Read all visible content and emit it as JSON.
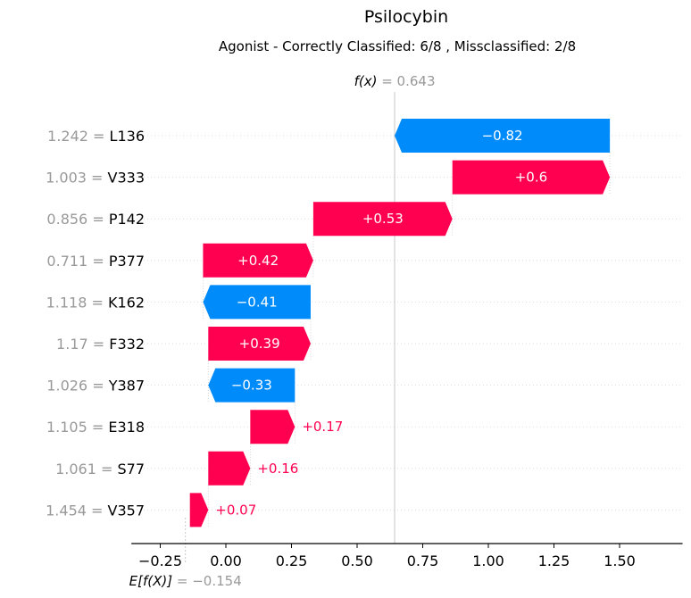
{
  "chart_data": {
    "type": "waterfall",
    "title": "Psilocybin",
    "subtitle": "Agonist - Correctly Classified: 6/8 , Missclassified: 2/8",
    "fx": {
      "label": "f(x)",
      "value": "0.643",
      "x": 0.643
    },
    "ex": {
      "label": "E[f(X)]",
      "value": "−0.154",
      "x": -0.154
    },
    "xlim": [
      -0.36,
      1.74
    ],
    "xticks": [
      -0.25,
      0.0,
      0.25,
      0.5,
      0.75,
      1.0,
      1.25,
      1.5
    ],
    "xtick_labels": [
      "−0.25",
      "0.00",
      "0.25",
      "0.50",
      "0.75",
      "1.00",
      "1.25",
      "1.50"
    ],
    "colors": {
      "positive": "#ff0051",
      "negative": "#008bfb",
      "muted": "#999999",
      "grid": "#cccccc"
    },
    "features": [
      {
        "value": "1.242",
        "name": "L136",
        "contribution": -0.82,
        "label": "−0.82"
      },
      {
        "value": "1.003",
        "name": "V333",
        "contribution": 0.6,
        "label": "+0.6"
      },
      {
        "value": "0.856",
        "name": "P142",
        "contribution": 0.53,
        "label": "+0.53"
      },
      {
        "value": "0.711",
        "name": "P377",
        "contribution": 0.42,
        "label": "+0.42"
      },
      {
        "value": "1.118",
        "name": "K162",
        "contribution": -0.41,
        "label": "−0.41"
      },
      {
        "value": "1.17",
        "name": "F332",
        "contribution": 0.39,
        "label": "+0.39"
      },
      {
        "value": "1.026",
        "name": "Y387",
        "contribution": -0.33,
        "label": "−0.33"
      },
      {
        "value": "1.105",
        "name": "E318",
        "contribution": 0.17,
        "label": "+0.17"
      },
      {
        "value": "1.061",
        "name": "S77",
        "contribution": 0.16,
        "label": "+0.16"
      },
      {
        "value": "1.454",
        "name": "V357",
        "contribution": 0.07,
        "label": "+0.07"
      }
    ]
  }
}
